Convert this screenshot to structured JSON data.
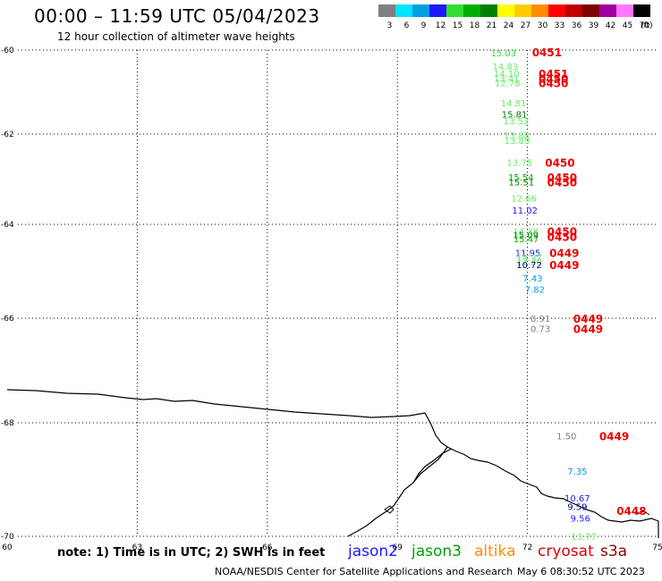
{
  "title": "00:00 – 11:59 UTC 05/04/2023",
  "subtitle": "12 hour collection of altimeter wave heights",
  "note": "note: 1) Time is in UTC; 2) SWH is in feet",
  "credit": "NOAA/NESDIS Center for Satellite Applications and Research",
  "timestamp": "May  6 08:30:52 UTC 2023",
  "legend": {
    "unit": "(ft)",
    "bins": [
      {
        "label": "3",
        "color": "#808080"
      },
      {
        "label": "6",
        "color": "#00e5ff"
      },
      {
        "label": "9",
        "color": "#009fe0"
      },
      {
        "label": "12",
        "color": "#1a1aff"
      },
      {
        "label": "15",
        "color": "#33dd33"
      },
      {
        "label": "18",
        "color": "#00b000"
      },
      {
        "label": "21",
        "color": "#008000"
      },
      {
        "label": "24",
        "color": "#ffff00"
      },
      {
        "label": "27",
        "color": "#ffcc00"
      },
      {
        "label": "30",
        "color": "#ff8c00"
      },
      {
        "label": "33",
        "color": "#ff0000"
      },
      {
        "label": "36",
        "color": "#c00000"
      },
      {
        "label": "39",
        "color": "#800000"
      },
      {
        "label": "42",
        "color": "#a000a0"
      },
      {
        "label": "45",
        "color": "#ff77ff"
      },
      {
        "label": "70",
        "color": "#000000"
      }
    ]
  },
  "missions": [
    {
      "name": "jason2",
      "color": "#1a1aff"
    },
    {
      "name": "jason3",
      "color": "#00a000"
    },
    {
      "name": "altika",
      "color": "#ff8c00"
    },
    {
      "name": "cryosat",
      "color": "#dd0000"
    },
    {
      "name": "s3a",
      "color": "#880000"
    }
  ],
  "axes": {
    "lon_labels": [
      "60",
      "63",
      "66",
      "69",
      "72",
      "75"
    ],
    "lat_labels": [
      "-60",
      "-62",
      "-64",
      "-66",
      "-68",
      "-70"
    ]
  },
  "chart_data": {
    "type": "scatter",
    "lon_range": [
      60,
      75
    ],
    "lat_range": [
      -70,
      -60
    ],
    "wave_heights": [
      {
        "lon": 71.45,
        "lat": -60.06,
        "swh": "15.03",
        "color": "#33dd33"
      },
      {
        "lon": 71.49,
        "lat": -60.38,
        "swh": "14.83",
        "color": "#66ee66"
      },
      {
        "lon": 71.52,
        "lat": -60.55,
        "swh": "14.10",
        "color": "#66ee66"
      },
      {
        "lon": 71.52,
        "lat": -60.67,
        "swh": "13.41",
        "color": "#66ee66"
      },
      {
        "lon": 71.54,
        "lat": -60.78,
        "swh": "12.78",
        "color": "#66ee66"
      },
      {
        "lon": 71.68,
        "lat": -61.26,
        "swh": "14.81",
        "color": "#66ee66"
      },
      {
        "lon": 71.7,
        "lat": -61.52,
        "swh": "15.81",
        "color": "#008000"
      },
      {
        "lon": 71.74,
        "lat": -61.68,
        "swh": "13.53",
        "color": "#66ee66"
      },
      {
        "lon": 71.75,
        "lat": -62.02,
        "swh": "13.88",
        "color": "#66ee66"
      },
      {
        "lon": 71.76,
        "lat": -62.14,
        "swh": "13.89",
        "color": "#66ee66"
      },
      {
        "lon": 71.82,
        "lat": -62.62,
        "swh": "13.75",
        "color": "#66ee66"
      },
      {
        "lon": 71.85,
        "lat": -62.95,
        "swh": "15.54",
        "color": "#00b000"
      },
      {
        "lon": 71.86,
        "lat": -63.06,
        "swh": "15.51",
        "color": "#008000"
      },
      {
        "lon": 71.92,
        "lat": -63.42,
        "swh": "12.66",
        "color": "#66ee66"
      },
      {
        "lon": 71.94,
        "lat": -63.68,
        "swh": "11.02",
        "color": "#1a1aff"
      },
      {
        "lon": 71.96,
        "lat": -64.14,
        "swh": "14.38",
        "color": "#66ee66"
      },
      {
        "lon": 71.96,
        "lat": -64.22,
        "swh": "15.09",
        "color": "#008000"
      },
      {
        "lon": 71.97,
        "lat": -64.3,
        "swh": "15.47",
        "color": "#00b000"
      },
      {
        "lon": 72.01,
        "lat": -64.6,
        "swh": "11.95",
        "color": "#1a1aff"
      },
      {
        "lon": 72.04,
        "lat": -64.7,
        "swh": "13.37",
        "color": "#66ee66"
      },
      {
        "lon": 72.04,
        "lat": -64.78,
        "swh": "12.30",
        "color": "#66ee66"
      },
      {
        "lon": 72.04,
        "lat": -64.86,
        "swh": "10.72",
        "color": "#000080"
      },
      {
        "lon": 72.12,
        "lat": -65.14,
        "swh": "7.43",
        "color": "#009fe0"
      },
      {
        "lon": 72.17,
        "lat": -65.38,
        "swh": "7.82",
        "color": "#009fe0"
      },
      {
        "lon": 72.3,
        "lat": -66.0,
        "swh": "0.91",
        "color": "#808080"
      },
      {
        "lon": 72.3,
        "lat": -66.2,
        "swh": "0.73",
        "color": "#808080"
      },
      {
        "lon": 72.9,
        "lat": -68.23,
        "swh": "1.50",
        "color": "#808080"
      },
      {
        "lon": 73.15,
        "lat": -68.85,
        "swh": "7.35",
        "color": "#009fe0"
      },
      {
        "lon": 73.15,
        "lat": -69.32,
        "swh": "10.67",
        "color": "#1a1aff"
      },
      {
        "lon": 73.15,
        "lat": -69.47,
        "swh": "9.59",
        "color": "#000080"
      },
      {
        "lon": 73.22,
        "lat": -69.68,
        "swh": "9.56",
        "color": "#1a1aff"
      },
      {
        "lon": 73.3,
        "lat": -70.3,
        "swh": "13.77",
        "color": "#66ee66"
      }
    ],
    "time_labels": [
      {
        "lon": 72.45,
        "lat": -60.04,
        "text": "0451"
      },
      {
        "lon": 72.6,
        "lat": -60.55,
        "text": "0451"
      },
      {
        "lon": 72.6,
        "lat": -60.67,
        "text": "0450"
      },
      {
        "lon": 72.6,
        "lat": -60.78,
        "text": "0450"
      },
      {
        "lon": 72.75,
        "lat": -62.62,
        "text": "0450"
      },
      {
        "lon": 72.8,
        "lat": -62.95,
        "text": "0450"
      },
      {
        "lon": 72.8,
        "lat": -63.06,
        "text": "0450"
      },
      {
        "lon": 72.8,
        "lat": -64.14,
        "text": "0450"
      },
      {
        "lon": 72.8,
        "lat": -64.26,
        "text": "0450"
      },
      {
        "lon": 72.85,
        "lat": -64.6,
        "text": "0449"
      },
      {
        "lon": 72.85,
        "lat": -64.86,
        "text": "0449"
      },
      {
        "lon": 73.4,
        "lat": -66.0,
        "text": "0449"
      },
      {
        "lon": 73.4,
        "lat": -66.2,
        "text": "0449"
      },
      {
        "lon": 74.0,
        "lat": -68.23,
        "text": "0449"
      },
      {
        "lon": 74.4,
        "lat": -69.54,
        "text": "0448"
      }
    ]
  }
}
